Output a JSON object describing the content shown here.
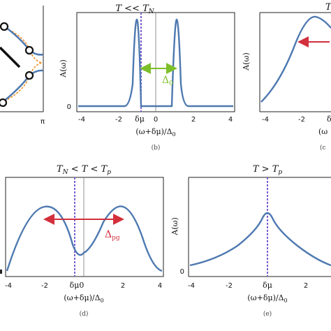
{
  "colors": {
    "curve": "#4e79b0",
    "dash": "#7a5fd0",
    "green": "#7dbf2a",
    "red": "#d2303c",
    "orange": "#f28c1e",
    "axis": "#222222",
    "line": "#777777"
  },
  "panel_a": {
    "tick_pi": "π"
  },
  "panel_b": {
    "title": "T << T",
    "title_sub": "N",
    "ylabel": "A(ω)",
    "xlabel": "(ω+δμ)/Δ",
    "xlabel_sub": "0",
    "ytick": "0",
    "xticks": [
      "-4",
      "-2",
      "0",
      "2",
      "4"
    ],
    "dmu_label": "δμ",
    "gap_label": "Δ",
    "gap_sub": "0",
    "caption": "(b)"
  },
  "panel_c": {
    "title": "T",
    "ylabel": "A(ω)",
    "xlabel": "(ω",
    "xticks": [
      "-4",
      "-2"
    ],
    "dmu_label": "δ",
    "caption": "(c"
  },
  "panel_d": {
    "title": "T",
    "title_sub1": "N",
    "title_mid": " < T < T",
    "title_sub2": "p",
    "xlabel": "(ω+δμ)/Δ",
    "xlabel_sub": "0",
    "xticks": [
      "-4",
      "-2",
      "2",
      "4"
    ],
    "center_label": "δμ0",
    "gap_label": "Δ",
    "gap_sub": "pg",
    "caption": "(d)"
  },
  "panel_e": {
    "title": "T > T",
    "title_sub": "p",
    "ylabel": "A(ω)",
    "xlabel": "(ω+δμ)/Δ",
    "xlabel_sub": "0",
    "ytick": "0",
    "xticks": [
      "-4",
      "-2",
      "2"
    ],
    "dmu_label": "δμ",
    "caption": "(e)"
  },
  "chart_data": [
    {
      "type": "line",
      "title": "T << T_N",
      "xlabel": "(ω+δμ)/Δ0",
      "ylabel": "A(ω)",
      "xlim": [
        -4,
        4
      ],
      "series": [
        {
          "x": [
            -4,
            -1.5,
            -1.2,
            -1.05,
            -1.0,
            -0.95,
            -0.6,
            0,
            0.6,
            0.95,
            1.0,
            1.05,
            1.2,
            1.5,
            4
          ],
          "y": [
            0,
            0.02,
            0.1,
            0.5,
            0.98,
            0.5,
            0,
            0,
            0,
            0.5,
            0.98,
            0.5,
            0.1,
            0.02,
            0
          ]
        }
      ],
      "dmu": -0.3,
      "gap_arrow": [
        -0.75,
        1.0
      ]
    },
    {
      "type": "line",
      "title": "T_N < T < T_p",
      "xlabel": "(ω+δμ)/Δ0",
      "xlim": [
        -4,
        4
      ],
      "series": [
        {
          "x": [
            -4,
            -3,
            -2,
            -1,
            0,
            1,
            2,
            3,
            4
          ],
          "y": [
            0.05,
            0.45,
            0.85,
            0.55,
            0.25,
            0.55,
            0.85,
            0.45,
            0.05
          ]
        }
      ],
      "dmu": -0.5,
      "gap_arrow": [
        -2.0,
        2.0
      ]
    },
    {
      "type": "line",
      "title": "T > T_p",
      "xlabel": "(ω+δμ)/Δ0",
      "ylabel": "A(ω)",
      "xlim": [
        -4,
        4
      ],
      "series": [
        {
          "x": [
            -4,
            -3,
            -2,
            -1,
            0,
            1,
            2,
            3,
            4
          ],
          "y": [
            0.1,
            0.16,
            0.28,
            0.6,
            0.98,
            0.6,
            0.28,
            0.16,
            0.1
          ]
        }
      ],
      "dmu": 0
    },
    {
      "type": "line",
      "title": "T",
      "ylabel": "A(ω)",
      "xlim": [
        -4,
        -1
      ],
      "series": [
        {
          "x": [
            -4,
            -3.5,
            -3,
            -2.5,
            -2,
            -1.5,
            -1.2
          ],
          "y": [
            0.05,
            0.2,
            0.45,
            0.72,
            0.92,
            1.0,
            0.95
          ]
        }
      ]
    }
  ]
}
